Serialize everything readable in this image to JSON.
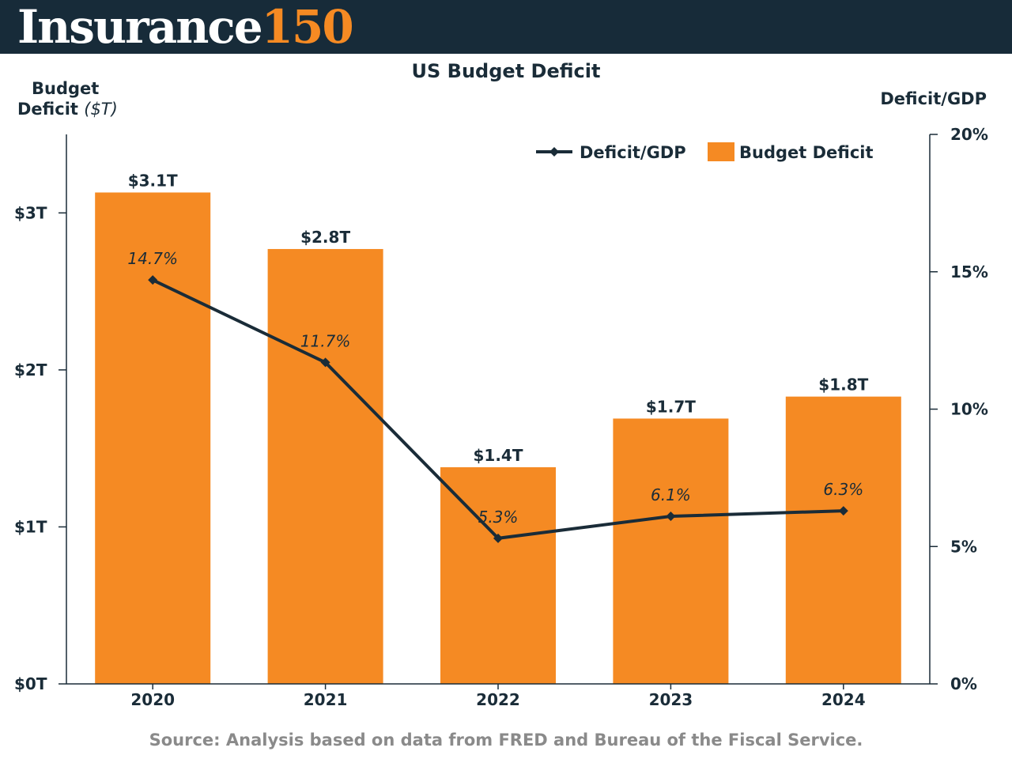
{
  "header": {
    "logo_word": "Insurance",
    "logo_number": "150"
  },
  "colors": {
    "header_bg": "#172b39",
    "accent_orange": "#f58a23",
    "line": "#1a2c38",
    "source_text": "#8a8a8a"
  },
  "source": "Source: Analysis based on data from FRED and Bureau of the Fiscal Service.",
  "chart_data": {
    "type": "bar",
    "title": "US Budget Deficit",
    "ylabel_left": "Budget",
    "ylabel_left_line2": "Deficit",
    "ylabel_left_unit": "($T)",
    "ylabel_right": "Deficit/GDP",
    "categories": [
      "2020",
      "2021",
      "2022",
      "2023",
      "2024"
    ],
    "ylim_left": [
      0,
      3.5
    ],
    "yticks_left": [
      0,
      1,
      2,
      3
    ],
    "ytick_labels_left": [
      "$0T",
      "$1T",
      "$2T",
      "$3T"
    ],
    "ylim_right": [
      0,
      20
    ],
    "yticks_right": [
      0,
      5,
      10,
      15,
      20
    ],
    "ytick_labels_right": [
      "0%",
      "5%",
      "10%",
      "15%",
      "20%"
    ],
    "legend_position": "top-right",
    "series": [
      {
        "name": "Budget Deficit",
        "type": "bar",
        "axis": "left",
        "color": "#f58a23",
        "values": [
          3.13,
          2.77,
          1.38,
          1.69,
          1.83
        ],
        "labels": [
          "$3.1T",
          "$2.8T",
          "$1.4T",
          "$1.7T",
          "$1.8T"
        ]
      },
      {
        "name": "Deficit/GDP",
        "type": "line",
        "axis": "right",
        "color": "#1a2c38",
        "values": [
          14.7,
          11.7,
          5.3,
          6.1,
          6.3
        ],
        "labels": [
          "14.7%",
          "11.7%",
          "5.3%",
          "6.1%",
          "6.3%"
        ]
      }
    ]
  }
}
